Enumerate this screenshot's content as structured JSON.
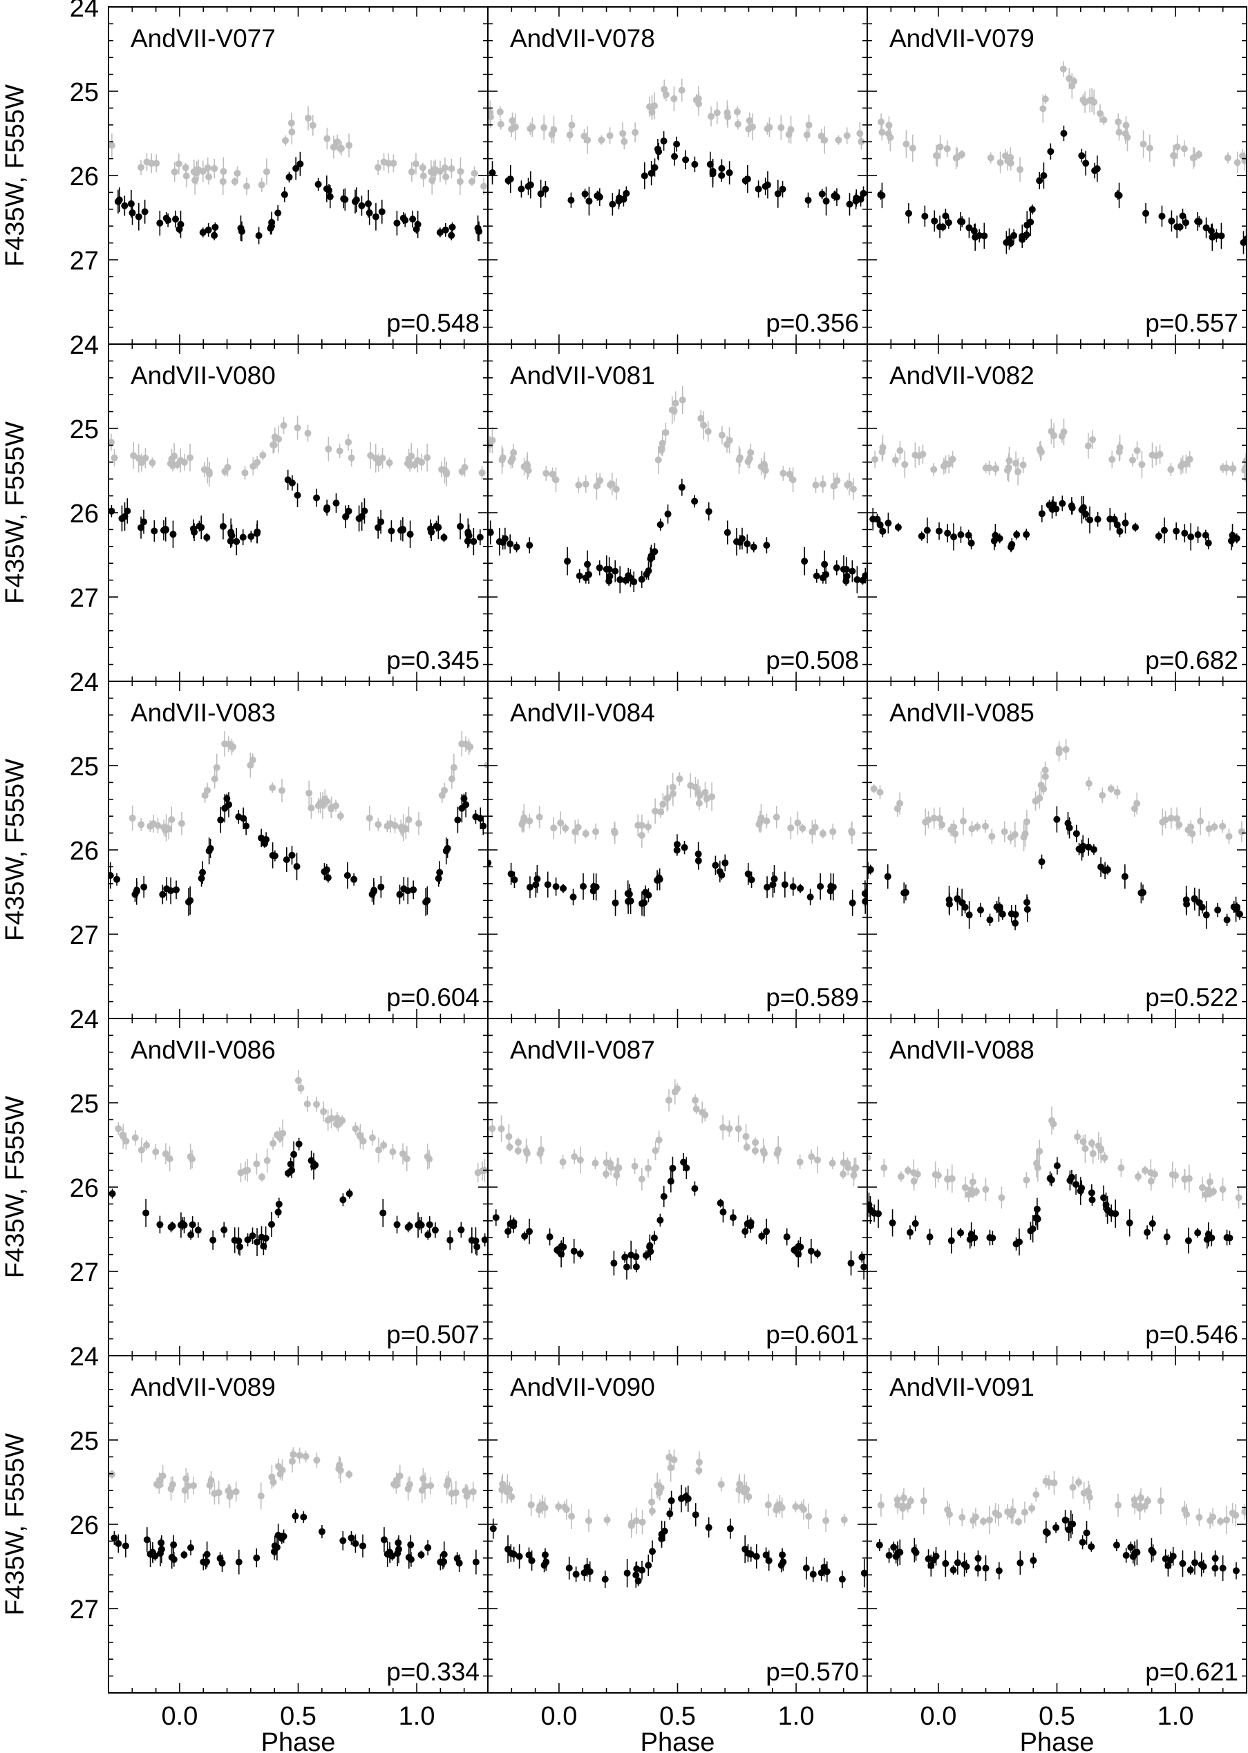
{
  "figure": {
    "ylabel": "F435W, F555W",
    "xlabel": "Phase",
    "xticks": [
      "0.0",
      "0.5",
      "1.0"
    ],
    "yticks": [
      "24",
      "25",
      "26",
      "27"
    ],
    "colors": {
      "F435W": "#bdbdbd",
      "F555W": "#000000"
    }
  },
  "chart_data": [
    {
      "type": "scatter",
      "title": "AndVII-V077",
      "period": "p=0.548",
      "xlim": [
        -0.3,
        1.3
      ],
      "ylim": [
        28,
        24
      ],
      "mean_F435W": 25.75,
      "mean_F555W": 26.35,
      "amplitude": 0.9,
      "max_phase": 0.5,
      "xlabel": "Phase",
      "ylabel": "F435W, F555W"
    },
    {
      "type": "scatter",
      "title": "AndVII-V078",
      "period": "p=0.356",
      "xlim": [
        -0.3,
        1.3
      ],
      "ylim": [
        28,
        24
      ],
      "mean_F435W": 25.3,
      "mean_F555W": 26.0,
      "amplitude": 0.7,
      "max_phase": 0.45,
      "xlabel": "Phase",
      "ylabel": "F435W, F555W"
    },
    {
      "type": "scatter",
      "title": "AndVII-V079",
      "period": "p=0.557",
      "xlim": [
        -0.3,
        1.3
      ],
      "ylim": [
        28,
        24
      ],
      "mean_F435W": 25.4,
      "mean_F555W": 26.2,
      "amplitude": 1.4,
      "max_phase": 0.5,
      "xlabel": "Phase",
      "ylabel": "F435W, F555W"
    },
    {
      "type": "scatter",
      "title": "AndVII-V080",
      "period": "p=0.345",
      "xlim": [
        -0.3,
        1.3
      ],
      "ylim": [
        28,
        24
      ],
      "mean_F435W": 25.25,
      "mean_F555W": 26.0,
      "amplitude": 0.7,
      "max_phase": 0.45,
      "xlabel": "Phase",
      "ylabel": "F435W, F555W"
    },
    {
      "type": "scatter",
      "title": "AndVII-V081",
      "period": "p=0.508",
      "xlim": [
        -0.3,
        1.3
      ],
      "ylim": [
        28,
        24
      ],
      "mean_F435W": 25.3,
      "mean_F555W": 26.3,
      "amplitude": 1.3,
      "max_phase": 0.5,
      "xlabel": "Phase",
      "ylabel": "F435W, F555W"
    },
    {
      "type": "scatter",
      "title": "AndVII-V082",
      "period": "p=0.682",
      "xlim": [
        -0.3,
        1.3
      ],
      "ylim": [
        28,
        24
      ],
      "mean_F435W": 25.3,
      "mean_F555W": 26.15,
      "amplitude": 0.5,
      "max_phase": 0.5,
      "xlabel": "Phase",
      "ylabel": "F435W, F555W"
    },
    {
      "type": "scatter",
      "title": "AndVII-V083",
      "period": "p=0.604",
      "xlim": [
        -0.3,
        1.3
      ],
      "ylim": [
        28,
        24
      ],
      "mean_F435W": 25.3,
      "mean_F555W": 26.1,
      "amplitude": 1.2,
      "max_phase": 0.2,
      "xlabel": "Phase",
      "ylabel": "F435W, F555W"
    },
    {
      "type": "scatter",
      "title": "AndVII-V084",
      "period": "p=0.589",
      "xlim": [
        -0.3,
        1.3
      ],
      "ylim": [
        28,
        24
      ],
      "mean_F435W": 25.55,
      "mean_F555W": 26.3,
      "amplitude": 0.7,
      "max_phase": 0.5,
      "xlabel": "Phase",
      "ylabel": "F435W, F555W"
    },
    {
      "type": "scatter",
      "title": "AndVII-V085",
      "period": "p=0.522",
      "xlim": [
        -0.3,
        1.3
      ],
      "ylim": [
        28,
        24
      ],
      "mean_F435W": 25.4,
      "mean_F555W": 26.3,
      "amplitude": 1.3,
      "max_phase": 0.5,
      "xlabel": "Phase",
      "ylabel": "F435W, F555W"
    },
    {
      "type": "scatter",
      "title": "AndVII-V086",
      "period": "p=0.507",
      "xlim": [
        -0.3,
        1.3
      ],
      "ylim": [
        28,
        24
      ],
      "mean_F435W": 25.4,
      "mean_F555W": 26.2,
      "amplitude": 1.2,
      "max_phase": 0.5,
      "xlabel": "Phase",
      "ylabel": "F435W, F555W"
    },
    {
      "type": "scatter",
      "title": "AndVII-V087",
      "period": "p=0.601",
      "xlim": [
        -0.3,
        1.3
      ],
      "ylim": [
        28,
        24
      ],
      "mean_F435W": 25.4,
      "mean_F555W": 26.4,
      "amplitude": 1.3,
      "max_phase": 0.5,
      "xlabel": "Phase",
      "ylabel": "F435W, F555W"
    },
    {
      "type": "scatter",
      "title": "AndVII-V088",
      "period": "p=0.546",
      "xlim": [
        -0.3,
        1.3
      ],
      "ylim": [
        28,
        24
      ],
      "mean_F435W": 25.7,
      "mean_F555W": 26.3,
      "amplitude": 1.1,
      "max_phase": 0.5,
      "xlabel": "Phase",
      "ylabel": "F435W, F555W"
    },
    {
      "type": "scatter",
      "title": "AndVII-V089",
      "period": "p=0.334",
      "xlim": [
        -0.3,
        1.3
      ],
      "ylim": [
        28,
        24
      ],
      "mean_F435W": 25.4,
      "mean_F555W": 26.2,
      "amplitude": 0.6,
      "max_phase": 0.5,
      "xlabel": "Phase",
      "ylabel": "F435W, F555W"
    },
    {
      "type": "scatter",
      "title": "AndVII-V090",
      "period": "p=0.570",
      "xlim": [
        -0.3,
        1.3
      ],
      "ylim": [
        28,
        24
      ],
      "mean_F435W": 25.6,
      "mean_F555W": 26.2,
      "amplitude": 1.1,
      "max_phase": 0.5,
      "xlabel": "Phase",
      "ylabel": "F435W, F555W"
    },
    {
      "type": "scatter",
      "title": "AndVII-V091",
      "period": "p=0.621",
      "xlim": [
        -0.3,
        1.3
      ],
      "ylim": [
        28,
        24
      ],
      "mean_F435W": 25.7,
      "mean_F555W": 26.3,
      "amplitude": 0.6,
      "max_phase": 0.5,
      "xlabel": "Phase",
      "ylabel": "F435W, F555W"
    }
  ]
}
